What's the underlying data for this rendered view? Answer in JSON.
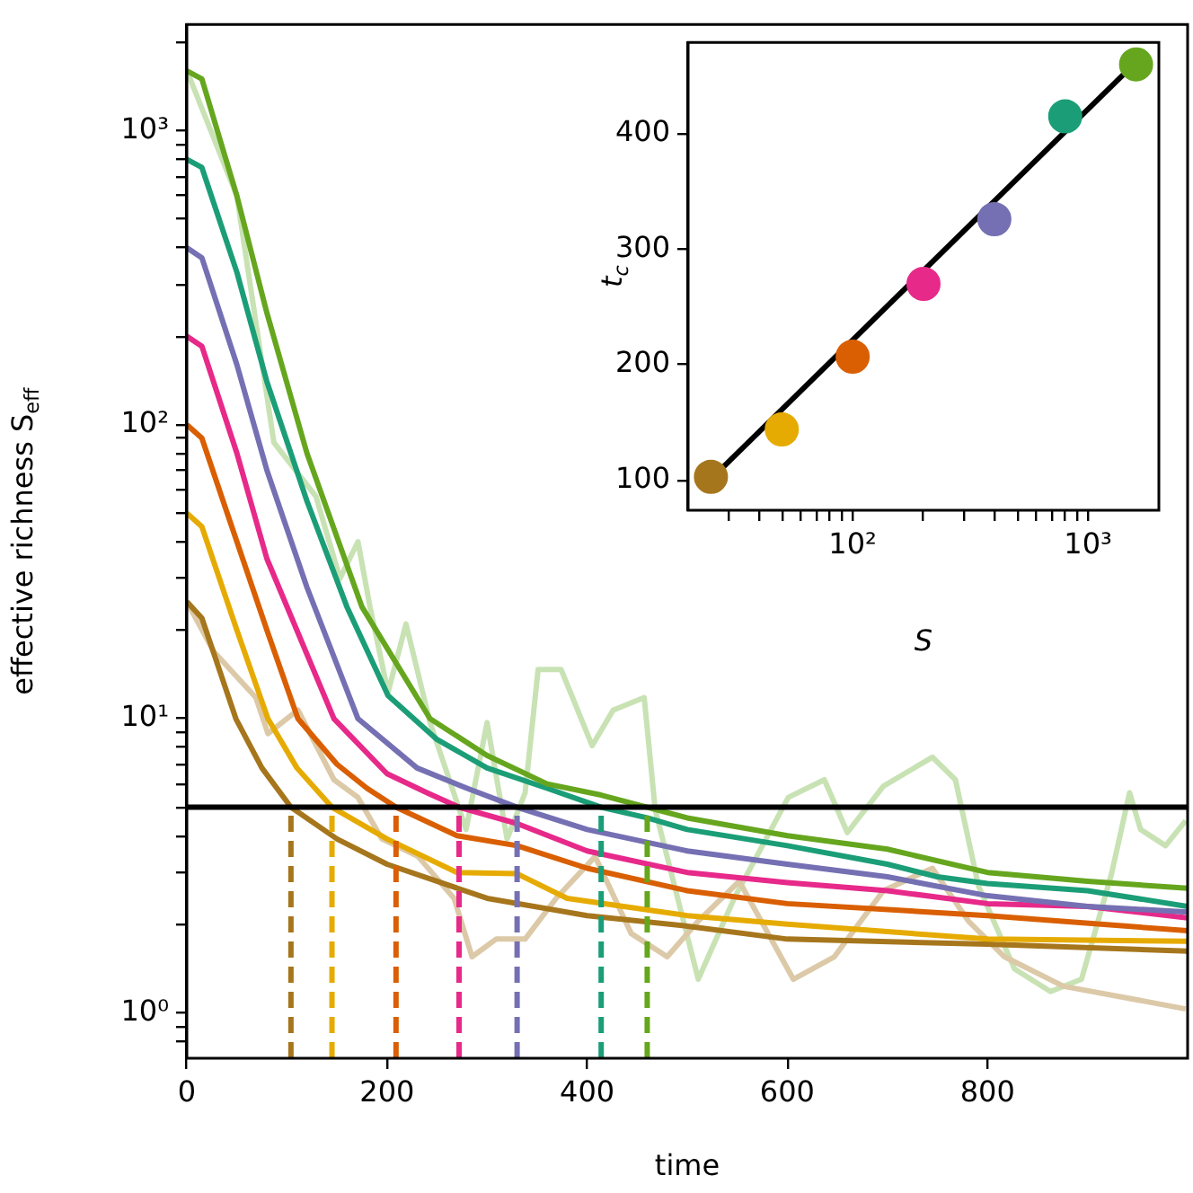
{
  "chart_data": [
    {
      "type": "line",
      "xlabel": "time",
      "ylabel": "effective richness S$_{eff}$",
      "xlim": [
        0,
        1000
      ],
      "xticks": [
        0,
        200,
        400,
        600,
        800
      ],
      "log": "y",
      "ylim": [
        0.7,
        2300
      ],
      "yticks": [
        {
          "value": 0.8,
          "label": null
        },
        {
          "value": 0.9,
          "label": null
        },
        {
          "value": 1,
          "label": "10⁰"
        },
        {
          "value": 2,
          "label": null
        },
        {
          "value": 3,
          "label": null
        },
        {
          "value": 4,
          "label": null
        },
        {
          "value": 5,
          "label": null
        },
        {
          "value": 6,
          "label": null
        },
        {
          "value": 7,
          "label": null
        },
        {
          "value": 8,
          "label": null
        },
        {
          "value": 9,
          "label": null
        },
        {
          "value": 10,
          "label": "10¹"
        },
        {
          "value": 20,
          "label": null
        },
        {
          "value": 30,
          "label": null
        },
        {
          "value": 40,
          "label": null
        },
        {
          "value": 50,
          "label": null
        },
        {
          "value": 60,
          "label": null
        },
        {
          "value": 70,
          "label": null
        },
        {
          "value": 80,
          "label": null
        },
        {
          "value": 90,
          "label": null
        },
        {
          "value": 100,
          "label": "10²"
        },
        {
          "value": 200,
          "label": null
        },
        {
          "value": 300,
          "label": null
        },
        {
          "value": 400,
          "label": null
        },
        {
          "value": 500,
          "label": null
        },
        {
          "value": 600,
          "label": null
        },
        {
          "value": 700,
          "label": null
        },
        {
          "value": 800,
          "label": null
        },
        {
          "value": 900,
          "label": null
        },
        {
          "value": 1000,
          "label": "10³"
        },
        {
          "value": 2000,
          "label": null
        }
      ],
      "line_style": "solid",
      "ref_lines": [
        {
          "axis": "y",
          "value": 5,
          "color": "#000000"
        }
      ],
      "series": [
        {
          "color": "#c8e2b4",
          "x": [
            0,
            50,
            87,
            129,
            153,
            171,
            183,
            201,
            219,
            243,
            279,
            300,
            320,
            338,
            351,
            374,
            405,
            426,
            457,
            468,
            511,
            547,
            601,
            637,
            660,
            696,
            745,
            768,
            791,
            827,
            863,
            894,
            924,
            942,
            953,
            978,
            998
          ],
          "values": [
            1600,
            600,
            87,
            57,
            30,
            40,
            24,
            12.3,
            21,
            9.7,
            4.2,
            9.7,
            3.9,
            5.6,
            14.7,
            14.7,
            8.1,
            10.7,
            11.8,
            4.9,
            1.3,
            2.45,
            5.4,
            6.2,
            4.1,
            5.9,
            7.4,
            6.2,
            2.7,
            1.41,
            1.18,
            1.3,
            2.97,
            5.6,
            4.2,
            3.7,
            4.5
          ]
        },
        {
          "color": "#dcc9a8",
          "x": [
            0,
            27,
            69,
            81,
            111,
            147,
            171,
            195,
            231,
            267,
            285,
            309,
            338,
            369,
            408,
            444,
            480,
            511,
            552,
            606,
            647,
            696,
            745,
            781,
            817,
            876,
            935,
            998
          ],
          "values": [
            25,
            16.9,
            11.8,
            8.9,
            10.7,
            6.2,
            5.4,
            3.9,
            3.4,
            2.45,
            1.55,
            1.78,
            1.78,
            2.45,
            3.4,
            1.86,
            1.55,
            2.05,
            2.8,
            1.3,
            1.55,
            2.6,
            3.1,
            2.05,
            1.55,
            1.23,
            1.13,
            1.03
          ]
        },
        {
          "color": "#a6761d",
          "x": [
            0,
            15,
            49,
            75,
            104,
            150,
            200,
            300,
            400,
            500,
            600,
            800,
            1000
          ],
          "values": [
            25,
            22,
            10,
            6.8,
            5,
            3.9,
            3.2,
            2.45,
            2.14,
            1.97,
            1.78,
            1.71,
            1.62
          ]
        },
        {
          "color": "#e6ab02",
          "x": [
            0,
            15,
            50,
            81,
            110,
            145,
            200,
            270,
            330,
            380,
            500,
            600,
            800,
            1000
          ],
          "values": [
            50,
            45,
            20,
            10,
            6.8,
            5,
            3.9,
            3,
            2.97,
            2.45,
            2.14,
            2,
            1.78,
            1.75
          ]
        },
        {
          "color": "#d95f02",
          "x": [
            0,
            15,
            50,
            80,
            111,
            150,
            180,
            209,
            270,
            330,
            400,
            500,
            600,
            800,
            1000
          ],
          "values": [
            100,
            90,
            40,
            20,
            10,
            7,
            5.8,
            5,
            4,
            3.7,
            3.1,
            2.6,
            2.35,
            2.14,
            1.9
          ]
        },
        {
          "color": "#e7298a",
          "x": [
            0,
            15,
            50,
            80,
            147,
            200,
            240,
            272,
            330,
            400,
            500,
            600,
            700,
            800,
            900,
            1000
          ],
          "values": [
            200,
            185,
            80,
            35,
            10,
            6.5,
            5.6,
            5,
            4.4,
            3.55,
            3,
            2.77,
            2.6,
            2.35,
            2.3,
            2.1
          ]
        },
        {
          "color": "#7570b3",
          "x": [
            0,
            15,
            50,
            80,
            120,
            171,
            230,
            280,
            330,
            400,
            500,
            600,
            700,
            800,
            900,
            1000
          ],
          "values": [
            400,
            370,
            160,
            70,
            28,
            10,
            6.8,
            5.8,
            5,
            4.2,
            3.55,
            3.2,
            2.9,
            2.5,
            2.3,
            2.2
          ]
        },
        {
          "color": "#1b9e77",
          "x": [
            0,
            15,
            50,
            80,
            120,
            160,
            201,
            250,
            300,
            360,
            414,
            460,
            500,
            600,
            700,
            750,
            800,
            900,
            1000
          ],
          "values": [
            800,
            750,
            330,
            140,
            55,
            24,
            12,
            8.5,
            6.8,
            5.8,
            5,
            4.6,
            4.2,
            3.7,
            3.2,
            2.9,
            2.75,
            2.6,
            2.3
          ]
        },
        {
          "color": "#66a61e",
          "x": [
            0,
            15,
            50,
            80,
            120,
            175,
            243,
            300,
            360,
            414,
            460,
            500,
            600,
            700,
            800,
            900,
            1000
          ],
          "values": [
            1600,
            1500,
            600,
            240,
            80,
            24,
            10,
            7.5,
            6,
            5.5,
            5,
            4.6,
            4,
            3.6,
            3,
            2.8,
            2.65
          ]
        },
        {
          "color": "#a6761d",
          "line_style": "dashed",
          "x": [
            104,
            104
          ],
          "values": [
            0.7,
            5
          ]
        },
        {
          "color": "#e6ab02",
          "line_style": "dashed",
          "x": [
            145,
            145
          ],
          "values": [
            0.7,
            5
          ]
        },
        {
          "color": "#d95f02",
          "line_style": "dashed",
          "x": [
            209,
            209
          ],
          "values": [
            0.7,
            5
          ]
        },
        {
          "color": "#e7298a",
          "line_style": "dashed",
          "x": [
            272,
            272
          ],
          "values": [
            0.7,
            5
          ]
        },
        {
          "color": "#7570b3",
          "line_style": "dashed",
          "x": [
            330,
            330
          ],
          "values": [
            0.7,
            5
          ]
        },
        {
          "color": "#1b9e77",
          "line_style": "dashed",
          "x": [
            414,
            414
          ],
          "values": [
            0.7,
            5
          ]
        },
        {
          "color": "#66a61e",
          "line_style": "dashed",
          "x": [
            460,
            460
          ],
          "values": [
            0.7,
            5
          ]
        }
      ]
    },
    {
      "type": "scatter",
      "xlabel": "S",
      "ylabel": "t$_{c}$",
      "log": "x",
      "xlim": [
        20,
        2000
      ],
      "ylim": [
        74,
        479
      ],
      "yticks": [
        100,
        200,
        300,
        400
      ],
      "xticks": [
        {
          "value": 30,
          "label": null
        },
        {
          "value": 40,
          "label": null
        },
        {
          "value": 50,
          "label": null
        },
        {
          "value": 60,
          "label": null
        },
        {
          "value": 70,
          "label": null
        },
        {
          "value": 80,
          "label": null
        },
        {
          "value": 90,
          "label": null
        },
        {
          "value": 100,
          "label": "10²"
        },
        {
          "value": 200,
          "label": null
        },
        {
          "value": 300,
          "label": null
        },
        {
          "value": 400,
          "label": null
        },
        {
          "value": 500,
          "label": null
        },
        {
          "value": 600,
          "label": null
        },
        {
          "value": 700,
          "label": null
        },
        {
          "value": 800,
          "label": null
        },
        {
          "value": 900,
          "label": null
        },
        {
          "value": 1000,
          "label": "10³"
        }
      ],
      "series": [
        {
          "type": "line",
          "color": "#000000",
          "x": [
            25,
            1600
          ],
          "values": [
            101,
            462
          ]
        },
        {
          "marker": "circle",
          "x": [
            25,
            50,
            100,
            200,
            400,
            800,
            1600
          ],
          "values": [
            103,
            144,
            207,
            270,
            326,
            415,
            460
          ],
          "colors": [
            "#a6761d",
            "#e6ab02",
            "#d95f02",
            "#e7298a",
            "#7570b3",
            "#1b9e77",
            "#66a61e"
          ]
        }
      ]
    }
  ]
}
